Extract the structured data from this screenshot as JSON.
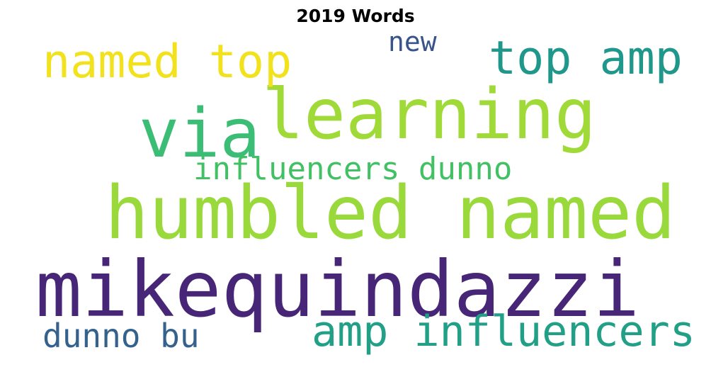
{
  "title": "2019 Words",
  "words": [
    {
      "text": "mikequindazzi",
      "color": "#472677"
    },
    {
      "text": "humbled named",
      "color": "#9ad93c"
    },
    {
      "text": "learning",
      "color": "#a0da39"
    },
    {
      "text": "via",
      "color": "#3bbd75"
    },
    {
      "text": "named top",
      "color": "#f2e21e"
    },
    {
      "text": "top amp",
      "color": "#1f988b"
    },
    {
      "text": "amp influencers",
      "color": "#21a087"
    },
    {
      "text": "influencers dunno",
      "color": "#42c064"
    },
    {
      "text": "dunno bu",
      "color": "#35618d"
    },
    {
      "text": "new",
      "color": "#39538b"
    }
  ]
}
